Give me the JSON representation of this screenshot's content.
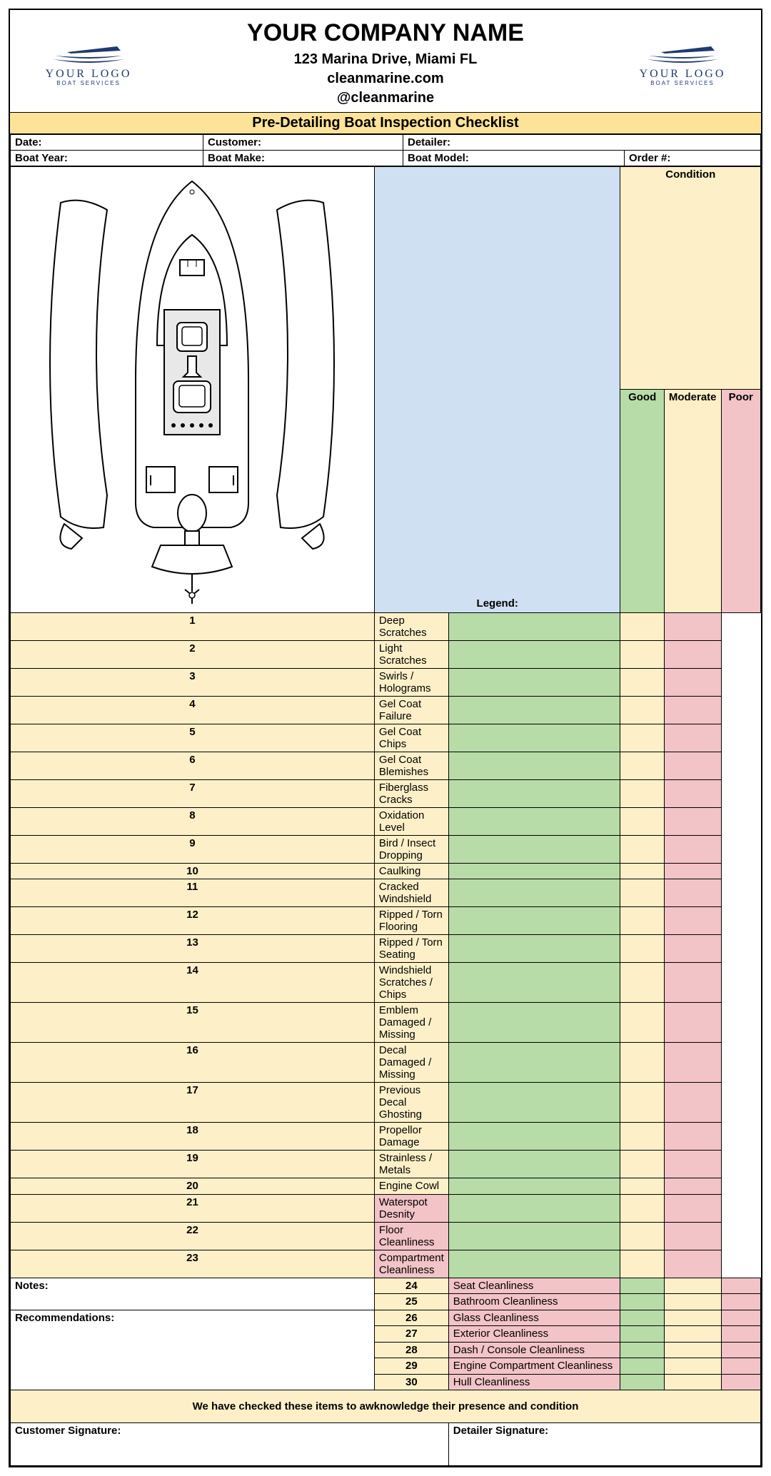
{
  "logo": {
    "main": "YOUR LOGO",
    "sub": "BOAT SERVICES",
    "color": "#1f3a6e"
  },
  "company": {
    "name": "YOUR COMPANY NAME",
    "address": "123 Marina Drive, Miami FL",
    "website": "cleanmarine.com",
    "handle": "@cleanmarine"
  },
  "title": "Pre-Detailing Boat Inspection Checklist",
  "fields": {
    "date": "Date:",
    "customer": "Customer:",
    "detailer": "Detailer:",
    "boat_year": "Boat Year:",
    "boat_make": "Boat Make:",
    "boat_model": "Boat Model:",
    "order": "Order #:"
  },
  "legend_label": "Legend:",
  "condition_label": "Condition",
  "cond": {
    "good": "Good",
    "moderate": "Moderate",
    "poor": "Poor"
  },
  "items": [
    {
      "n": "1",
      "label": "Deep Scratches",
      "group": "y"
    },
    {
      "n": "2",
      "label": "Light Scratches",
      "group": "y"
    },
    {
      "n": "3",
      "label": "Swirls / Holograms",
      "group": "y"
    },
    {
      "n": "4",
      "label": "Gel Coat Failure",
      "group": "y"
    },
    {
      "n": "5",
      "label": "Gel Coat Chips",
      "group": "y"
    },
    {
      "n": "6",
      "label": "Gel Coat Blemishes",
      "group": "y"
    },
    {
      "n": "7",
      "label": "Fiberglass Cracks",
      "group": "y"
    },
    {
      "n": "8",
      "label": "Oxidation Level",
      "group": "y"
    },
    {
      "n": "9",
      "label": "Bird / Insect Dropping",
      "group": "y"
    },
    {
      "n": "10",
      "label": "Caulking",
      "group": "y"
    },
    {
      "n": "11",
      "label": "Cracked Windshield",
      "group": "y"
    },
    {
      "n": "12",
      "label": "Ripped / Torn Flooring",
      "group": "y"
    },
    {
      "n": "13",
      "label": "Ripped / Torn Seating",
      "group": "y"
    },
    {
      "n": "14",
      "label": "Windshield Scratches / Chips",
      "group": "y"
    },
    {
      "n": "15",
      "label": "Emblem Damaged / Missing",
      "group": "y"
    },
    {
      "n": "16",
      "label": "Decal Damaged / Missing",
      "group": "y"
    },
    {
      "n": "17",
      "label": "Previous Decal Ghosting",
      "group": "y"
    },
    {
      "n": "18",
      "label": "Propellor Damage",
      "group": "y"
    },
    {
      "n": "19",
      "label": "Strainless / Metals",
      "group": "y"
    },
    {
      "n": "20",
      "label": "Engine Cowl",
      "group": "y"
    },
    {
      "n": "21",
      "label": "Waterspot Desnity",
      "group": "p"
    },
    {
      "n": "22",
      "label": "Floor Cleanliness",
      "group": "p"
    },
    {
      "n": "23",
      "label": "Compartment Cleanliness",
      "group": "p"
    },
    {
      "n": "24",
      "label": "Seat Cleanliness",
      "group": "p"
    },
    {
      "n": "25",
      "label": "Bathroom Cleanliness",
      "group": "p"
    },
    {
      "n": "26",
      "label": "Glass Cleanliness",
      "group": "p"
    },
    {
      "n": "27",
      "label": "Exterior Cleanliness",
      "group": "p"
    },
    {
      "n": "28",
      "label": "Dash / Console Cleanliness",
      "group": "p"
    },
    {
      "n": "29",
      "label": "Engine Compartment Cleanliness",
      "group": "p"
    },
    {
      "n": "30",
      "label": "Hull Cleanliness",
      "group": "p"
    }
  ],
  "notes_label": "Notes:",
  "reco_label": "Recommendations:",
  "ack": "We have checked these items to awknowledge their presence and condition",
  "sig": {
    "customer": "Customer Signature:",
    "detailer": "Detailer Signature:"
  },
  "colors": {
    "header_yellow": "#fde398",
    "soft_yellow": "#fdf0c8",
    "blue_head": "#cfe0f2",
    "green": "#b7dca8",
    "pink": "#f2c3c7"
  },
  "layout": {
    "left_col_width": 510,
    "num_col_width": 40,
    "item_col_width": 250,
    "cond_col_width": 62
  }
}
